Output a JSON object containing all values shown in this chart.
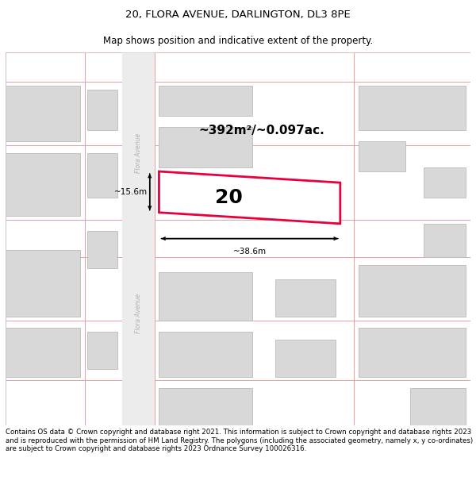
{
  "title": "20, FLORA AVENUE, DARLINGTON, DL3 8PE",
  "subtitle": "Map shows position and indicative extent of the property.",
  "footer": "Contains OS data © Crown copyright and database right 2021. This information is subject to Crown copyright and database rights 2023 and is reproduced with the permission of HM Land Registry. The polygons (including the associated geometry, namely x, y co-ordinates) are subject to Crown copyright and database rights 2023 Ordnance Survey 100026316.",
  "background_color": "#ffffff",
  "map_bg": "#f7f7f7",
  "building_fill": "#d8d8d8",
  "building_edge": "#bbbbbb",
  "highlight_fill": "#ffffff",
  "highlight_edge": "#e8003c",
  "road_line_color": "#e8a0a0",
  "street_label": "Flora Avenue",
  "area_label": "~392m²/~0.097ac.",
  "plot_number": "20",
  "dim_width": "~38.6m",
  "dim_height": "~15.6m",
  "title_fontsize": 9.5,
  "subtitle_fontsize": 8.5,
  "footer_fontsize": 6.2
}
